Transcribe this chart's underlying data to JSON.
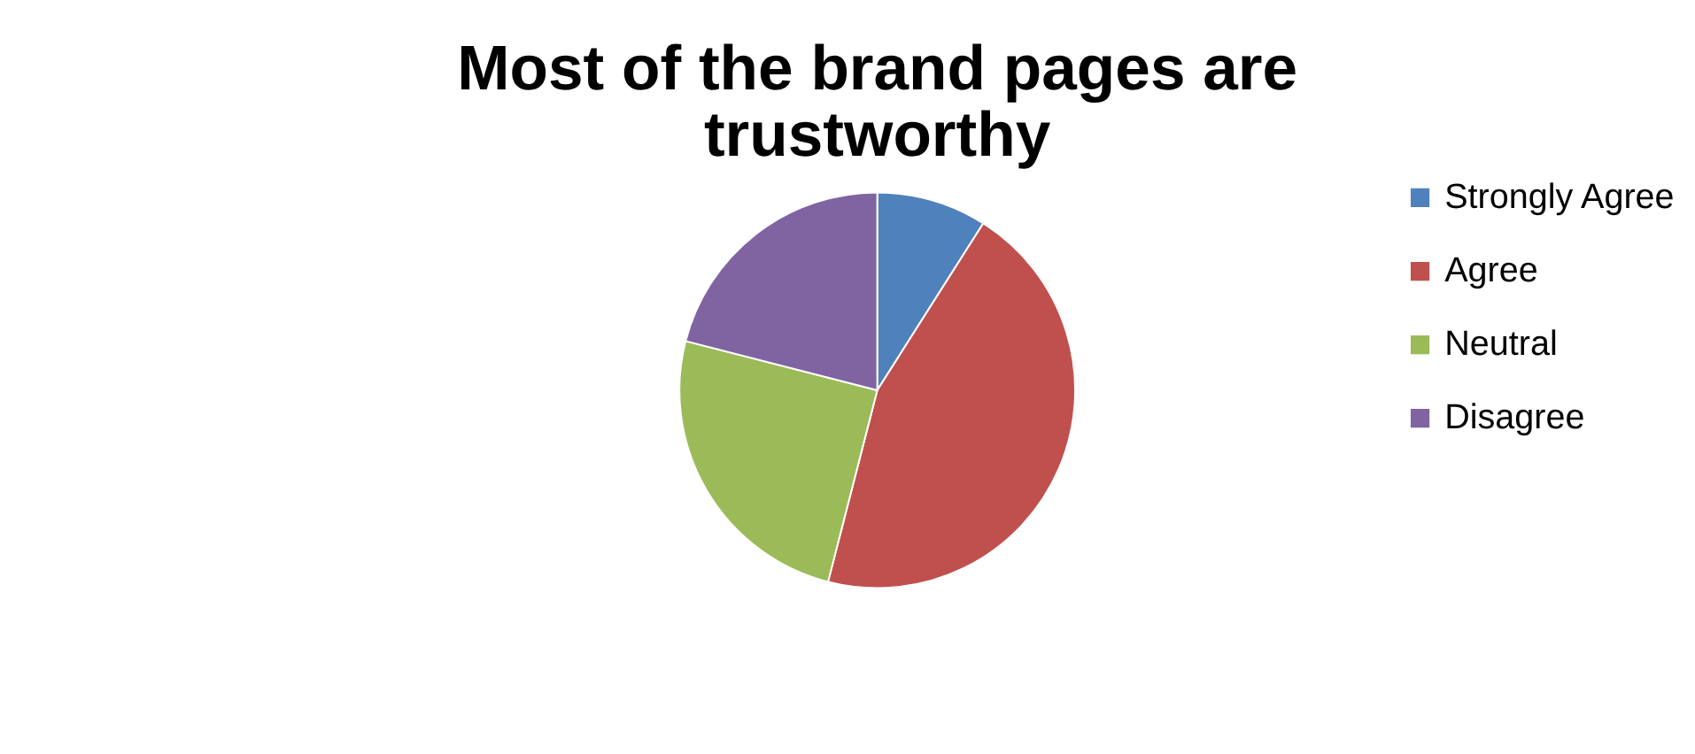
{
  "chart_data": {
    "type": "pie",
    "title": "Most of the brand pages are trustworthy",
    "categories": [
      "Strongly Agree",
      "Agree",
      "Neutral",
      "Disagree"
    ],
    "values": [
      9,
      45,
      25,
      21
    ],
    "colors": [
      "#4f81bd",
      "#c0504d",
      "#9bbb59",
      "#8064a2"
    ],
    "legend": "right"
  }
}
